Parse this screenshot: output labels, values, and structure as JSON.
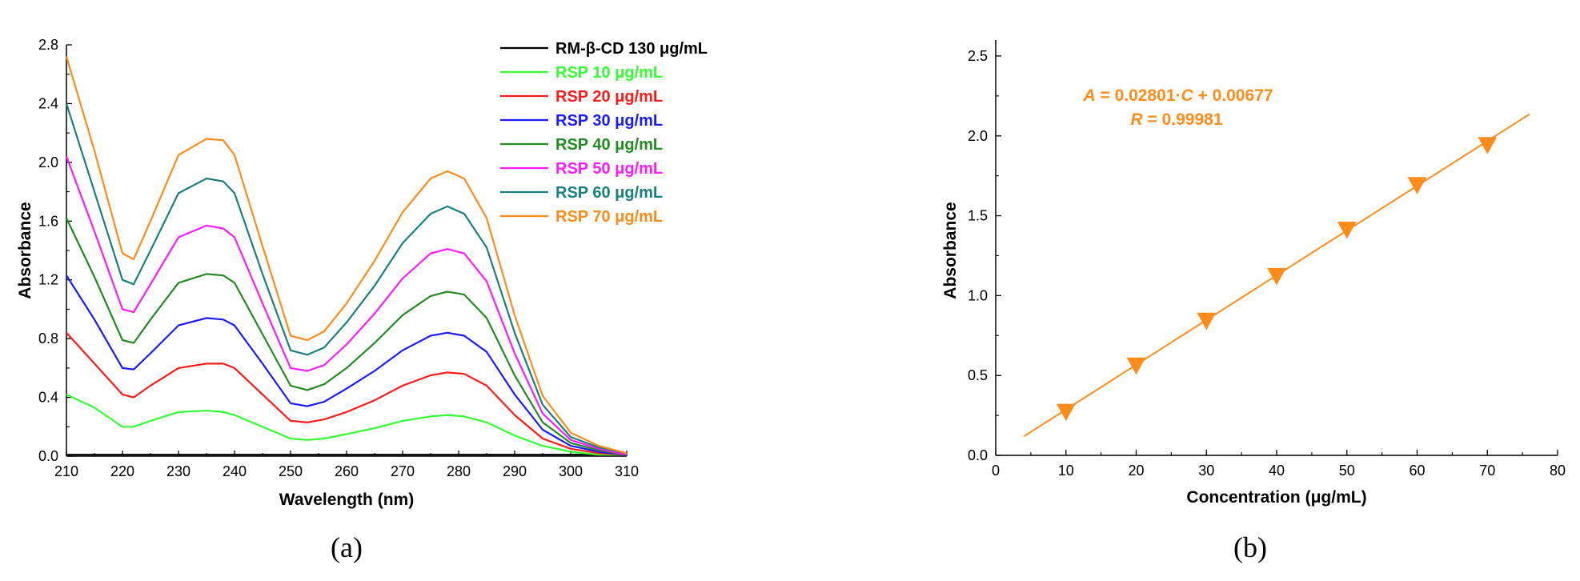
{
  "chart_data": [
    {
      "type": "line",
      "panel_label": "(a)",
      "xlabel": "Wavelength (nm)",
      "ylabel": "Absorbance",
      "xlim": [
        210,
        310
      ],
      "ylim": [
        0.0,
        2.8
      ],
      "xticks": [
        "210",
        "220",
        "230",
        "240",
        "250",
        "260",
        "270",
        "280",
        "290",
        "300",
        "310"
      ],
      "yticks": [
        "0.0",
        "0.4",
        "0.8",
        "1.2",
        "1.6",
        "2.0",
        "2.4",
        "2.8"
      ],
      "grid": false,
      "legend_position": "top-right",
      "x": [
        210,
        215,
        220,
        222,
        225,
        230,
        235,
        238,
        240,
        245,
        250,
        253,
        256,
        260,
        265,
        270,
        275,
        278,
        281,
        285,
        290,
        295,
        300,
        305,
        310
      ],
      "series": [
        {
          "name": "RM-β-CD 130 μg/mL",
          "color": "#000000",
          "values": [
            0.01,
            0.01,
            0.01,
            0.01,
            0.01,
            0.01,
            0.01,
            0.01,
            0.01,
            0.01,
            0.01,
            0.01,
            0.01,
            0.01,
            0.01,
            0.01,
            0.01,
            0.01,
            0.01,
            0.01,
            0.01,
            0.01,
            0.01,
            0.01,
            0.01
          ]
        },
        {
          "name": "RSP 10 μg/mL",
          "color": "#33FF33",
          "values": [
            0.42,
            0.33,
            0.2,
            0.2,
            0.24,
            0.3,
            0.31,
            0.3,
            0.28,
            0.2,
            0.12,
            0.11,
            0.12,
            0.15,
            0.19,
            0.24,
            0.27,
            0.28,
            0.27,
            0.23,
            0.14,
            0.07,
            0.03,
            0.01,
            0.01
          ]
        },
        {
          "name": "RSP 20 μg/mL",
          "color": "#FF1A1A",
          "values": [
            0.84,
            0.63,
            0.42,
            0.4,
            0.48,
            0.6,
            0.63,
            0.63,
            0.6,
            0.42,
            0.24,
            0.23,
            0.25,
            0.3,
            0.38,
            0.48,
            0.55,
            0.57,
            0.56,
            0.48,
            0.28,
            0.12,
            0.05,
            0.02,
            0.01
          ]
        },
        {
          "name": "RSP 30 μg/mL",
          "color": "#1A1AFF",
          "values": [
            1.23,
            0.93,
            0.6,
            0.59,
            0.7,
            0.89,
            0.94,
            0.93,
            0.89,
            0.63,
            0.36,
            0.34,
            0.37,
            0.46,
            0.58,
            0.72,
            0.82,
            0.84,
            0.82,
            0.71,
            0.42,
            0.18,
            0.07,
            0.03,
            0.01
          ]
        },
        {
          "name": "RSP 40 μg/mL",
          "color": "#228B22",
          "values": [
            1.62,
            1.22,
            0.79,
            0.77,
            0.93,
            1.18,
            1.24,
            1.23,
            1.18,
            0.83,
            0.48,
            0.45,
            0.49,
            0.6,
            0.77,
            0.96,
            1.09,
            1.12,
            1.1,
            0.94,
            0.55,
            0.23,
            0.09,
            0.04,
            0.01
          ]
        },
        {
          "name": "RSP 50 μg/mL",
          "color": "#FF1AFF",
          "values": [
            2.04,
            1.53,
            1.0,
            0.98,
            1.17,
            1.49,
            1.57,
            1.55,
            1.49,
            1.04,
            0.6,
            0.58,
            0.62,
            0.76,
            0.97,
            1.21,
            1.38,
            1.41,
            1.38,
            1.19,
            0.7,
            0.29,
            0.11,
            0.05,
            0.01
          ]
        },
        {
          "name": "RSP 60 μg/mL",
          "color": "#1A7F7F",
          "values": [
            2.4,
            1.8,
            1.2,
            1.17,
            1.4,
            1.79,
            1.89,
            1.87,
            1.79,
            1.24,
            0.72,
            0.69,
            0.74,
            0.91,
            1.16,
            1.45,
            1.65,
            1.7,
            1.65,
            1.42,
            0.84,
            0.35,
            0.13,
            0.06,
            0.02
          ]
        },
        {
          "name": "RSP 70 μg/mL",
          "color": "#FF8C1A",
          "values": [
            2.72,
            2.08,
            1.38,
            1.34,
            1.6,
            2.05,
            2.16,
            2.15,
            2.05,
            1.43,
            0.82,
            0.79,
            0.85,
            1.04,
            1.33,
            1.66,
            1.89,
            1.94,
            1.89,
            1.62,
            0.96,
            0.41,
            0.16,
            0.07,
            0.02
          ]
        }
      ]
    },
    {
      "type": "scatter",
      "panel_label": "(b)",
      "xlabel": "Concentration (μg/mL)",
      "ylabel": "Absorbance",
      "xlim": [
        0,
        80
      ],
      "ylim": [
        0.0,
        2.6
      ],
      "xticks": [
        "0",
        "10",
        "20",
        "30",
        "40",
        "50",
        "60",
        "70",
        "80"
      ],
      "yticks": [
        "0.0",
        "0.5",
        "1.0",
        "1.5",
        "2.0",
        "2.5"
      ],
      "grid": false,
      "color": "#FF8C1A",
      "marker": "triangle-down",
      "x": [
        10,
        20,
        30,
        40,
        50,
        60,
        70
      ],
      "values": [
        0.27,
        0.56,
        0.84,
        1.12,
        1.41,
        1.69,
        1.94
      ],
      "fit": {
        "slope": 0.02801,
        "intercept": 0.00677,
        "x_range": [
          4,
          76
        ]
      },
      "equation_parts": [
        "A",
        " = 0.02801·",
        "C",
        " + 0.00677"
      ],
      "r_parts": [
        "R",
        " = 0.99981"
      ]
    }
  ]
}
